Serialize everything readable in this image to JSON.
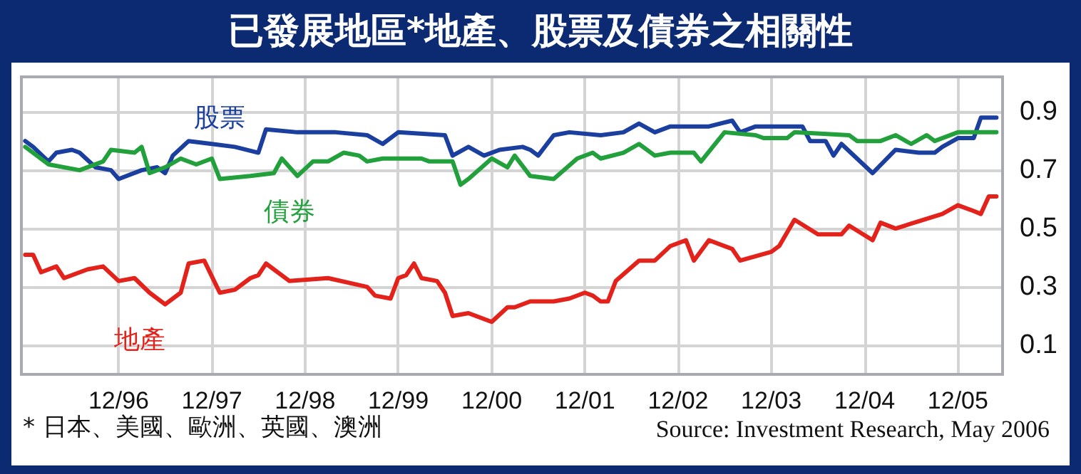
{
  "chart_data": {
    "type": "line",
    "title": "已發展地區*地產、股票及債券之相關性",
    "annotations": [
      "* 日本、美國、歐洲、英國、澳洲",
      "Source: Investment Research, May 2006"
    ],
    "xlim": [
      "1995-11-16",
      "2006-05-25"
    ],
    "xticks": [
      {
        "value": "1996-12",
        "label": "12/96"
      },
      {
        "value": "1997-12",
        "label": "12/97"
      },
      {
        "value": "1998-12",
        "label": "12/98"
      },
      {
        "value": "1999-12",
        "label": "12/99"
      },
      {
        "value": "2000-12",
        "label": "12/00"
      },
      {
        "value": "2001-12",
        "label": "12/01"
      },
      {
        "value": "2002-12",
        "label": "12/02"
      },
      {
        "value": "2003-12",
        "label": "12/03"
      },
      {
        "value": "2004-12",
        "label": "12/04"
      },
      {
        "value": "2005-12",
        "label": "12/05"
      }
    ],
    "ylim": [
      0,
      1.02
    ],
    "yticks": [
      0.1,
      0.3,
      0.5,
      0.7,
      0.9
    ],
    "grid": true,
    "series": [
      {
        "name": "股票",
        "color": "#1b3f9e",
        "x": [
          "1995-12",
          "1996-01",
          "1996-03",
          "1996-04",
          "1996-06",
          "1996-07",
          "1996-09",
          "1996-11",
          "1996-12",
          "1997-03",
          "1997-05",
          "1997-06",
          "1997-07",
          "1997-09",
          "1997-12",
          "1998-03",
          "1998-06",
          "1998-07",
          "1998-11",
          "1999-04",
          "1999-08",
          "1999-10",
          "1999-12",
          "2000-06",
          "2000-07",
          "2000-09",
          "2000-11",
          "2001-01",
          "2001-04",
          "2001-05",
          "2001-06",
          "2001-08",
          "2001-10",
          "2002-02",
          "2002-05",
          "2002-07",
          "2002-09",
          "2002-11",
          "2003-04",
          "2003-07",
          "2003-08",
          "2003-10",
          "2004-04",
          "2004-05",
          "2004-07",
          "2004-08",
          "2004-09",
          "2005-01",
          "2005-04",
          "2005-07",
          "2005-09",
          "2005-10",
          "2005-12",
          "2006-02",
          "2006-03",
          "2006-05"
        ],
        "values": [
          0.8,
          0.78,
          0.73,
          0.76,
          0.77,
          0.76,
          0.71,
          0.7,
          0.67,
          0.7,
          0.71,
          0.69,
          0.75,
          0.8,
          0.79,
          0.78,
          0.76,
          0.84,
          0.83,
          0.83,
          0.82,
          0.79,
          0.83,
          0.82,
          0.75,
          0.78,
          0.75,
          0.77,
          0.78,
          0.77,
          0.75,
          0.82,
          0.83,
          0.82,
          0.83,
          0.86,
          0.83,
          0.85,
          0.85,
          0.87,
          0.83,
          0.85,
          0.85,
          0.8,
          0.8,
          0.75,
          0.79,
          0.69,
          0.77,
          0.76,
          0.76,
          0.78,
          0.81,
          0.81,
          0.88,
          0.88
        ]
      },
      {
        "name": "債券",
        "color": "#22a03c",
        "x": [
          "1995-12",
          "1996-03",
          "1996-07",
          "1996-10",
          "1996-11",
          "1997-02",
          "1997-03",
          "1997-04",
          "1997-06",
          "1997-08",
          "1997-10",
          "1997-12",
          "1998-01",
          "1998-05",
          "1998-08",
          "1998-09",
          "1998-11",
          "1999-01",
          "1999-03",
          "1999-05",
          "1999-07",
          "1999-08",
          "1999-10",
          "2000-03",
          "2000-04",
          "2000-07",
          "2000-08",
          "2000-09",
          "2000-12",
          "2001-02",
          "2001-03",
          "2001-05",
          "2001-08",
          "2001-11",
          "2002-01",
          "2002-02",
          "2002-05",
          "2002-07",
          "2002-09",
          "2002-11",
          "2003-02",
          "2003-03",
          "2003-06",
          "2003-10",
          "2003-11",
          "2004-02",
          "2004-03",
          "2004-10",
          "2004-11",
          "2005-02",
          "2005-04",
          "2005-06",
          "2005-08",
          "2005-09",
          "2005-12",
          "2006-05"
        ],
        "values": [
          0.78,
          0.72,
          0.7,
          0.73,
          0.77,
          0.76,
          0.78,
          0.69,
          0.71,
          0.74,
          0.72,
          0.74,
          0.67,
          0.68,
          0.69,
          0.74,
          0.68,
          0.73,
          0.73,
          0.76,
          0.75,
          0.73,
          0.74,
          0.74,
          0.73,
          0.73,
          0.65,
          0.67,
          0.74,
          0.71,
          0.75,
          0.68,
          0.67,
          0.74,
          0.76,
          0.74,
          0.76,
          0.79,
          0.75,
          0.76,
          0.76,
          0.73,
          0.83,
          0.82,
          0.81,
          0.81,
          0.83,
          0.82,
          0.8,
          0.8,
          0.82,
          0.79,
          0.82,
          0.8,
          0.83,
          0.83
        ]
      },
      {
        "name": "地產",
        "color": "#e3231b",
        "x": [
          "1995-12",
          "1996-01",
          "1996-02",
          "1996-04",
          "1996-05",
          "1996-08",
          "1996-10",
          "1996-12",
          "1997-02",
          "1997-04",
          "1997-06",
          "1997-08",
          "1997-09",
          "1997-11",
          "1998-01",
          "1998-03",
          "1998-05",
          "1998-06",
          "1998-07",
          "1998-10",
          "1999-03",
          "1999-08",
          "1999-09",
          "1999-11",
          "1999-12",
          "2000-01",
          "2000-02",
          "2000-03",
          "2000-05",
          "2000-06",
          "2000-07",
          "2000-09",
          "2000-12",
          "2001-02",
          "2001-03",
          "2001-05",
          "2001-08",
          "2001-10",
          "2001-12",
          "2002-01",
          "2002-02",
          "2002-03",
          "2002-04",
          "2002-07",
          "2002-09",
          "2002-11",
          "2003-01",
          "2003-02",
          "2003-04",
          "2003-07",
          "2003-08",
          "2003-12",
          "2004-01",
          "2004-03",
          "2004-06",
          "2004-09",
          "2004-10",
          "2005-01",
          "2005-02",
          "2005-04",
          "2005-10",
          "2005-12",
          "2006-02",
          "2006-03",
          "2006-04",
          "2006-05"
        ],
        "values": [
          0.41,
          0.41,
          0.35,
          0.37,
          0.33,
          0.36,
          0.37,
          0.32,
          0.33,
          0.28,
          0.24,
          0.28,
          0.38,
          0.39,
          0.28,
          0.29,
          0.33,
          0.34,
          0.38,
          0.32,
          0.33,
          0.3,
          0.27,
          0.26,
          0.33,
          0.34,
          0.38,
          0.33,
          0.32,
          0.28,
          0.2,
          0.21,
          0.18,
          0.23,
          0.23,
          0.25,
          0.25,
          0.26,
          0.28,
          0.27,
          0.25,
          0.25,
          0.32,
          0.39,
          0.39,
          0.44,
          0.46,
          0.39,
          0.46,
          0.43,
          0.39,
          0.42,
          0.44,
          0.53,
          0.48,
          0.48,
          0.51,
          0.46,
          0.52,
          0.5,
          0.55,
          0.58,
          0.56,
          0.55,
          0.61,
          0.61
        ]
      }
    ]
  }
}
